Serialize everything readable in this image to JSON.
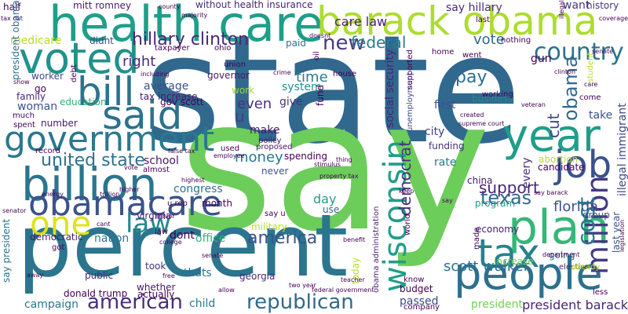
{
  "words": [
    {
      "text": "state",
      "color": "#31688e"
    },
    {
      "text": "say",
      "color": "#6ccd5a"
    },
    {
      "text": "percent",
      "color": "#2b758e"
    },
    {
      "text": "health care",
      "color": "#1f9e89"
    },
    {
      "text": "barack obama",
      "color": "#addc30"
    },
    {
      "text": "voted",
      "color": "#21918c"
    },
    {
      "text": "bill",
      "color": "#2c728e"
    },
    {
      "text": "said",
      "color": "#2c728e"
    },
    {
      "text": "government",
      "color": "#2a788e"
    },
    {
      "text": "billion",
      "color": "#2b758e"
    },
    {
      "text": "obamacare",
      "color": "#3b528b"
    },
    {
      "text": "one",
      "color": "#dde318"
    },
    {
      "text": "law",
      "color": "#238a8d"
    },
    {
      "text": "people",
      "color": "#2d708e"
    },
    {
      "text": "year",
      "color": "#1f9e89"
    },
    {
      "text": "job",
      "color": "#3b528b"
    },
    {
      "text": "plan",
      "color": "#35b779"
    },
    {
      "text": "million",
      "color": "#443a83"
    },
    {
      "text": "tax",
      "color": "#26828e"
    },
    {
      "text": "country",
      "color": "#2c728e"
    },
    {
      "text": "obama",
      "color": "#31688e"
    },
    {
      "text": "wisconsin",
      "color": "#1f9e89"
    },
    {
      "text": "cost",
      "color": "#2a788e"
    },
    {
      "text": "american",
      "color": "#472d7b"
    },
    {
      "text": "republican",
      "color": "#31688e"
    },
    {
      "text": "texas",
      "color": "#31688e"
    },
    {
      "text": "hillary clinton",
      "color": "#482878"
    },
    {
      "text": "new",
      "color": "#443a83"
    },
    {
      "text": "federal",
      "color": "#277f8e"
    },
    {
      "text": "right",
      "color": "#472c7a"
    },
    {
      "text": "care law",
      "color": "#481f70"
    },
    {
      "text": "pay",
      "color": "#2c718e"
    },
    {
      "text": "united state",
      "color": "#2d708e"
    },
    {
      "text": "vote",
      "color": "#31688e"
    },
    {
      "text": "cut",
      "color": "#3e4989"
    },
    {
      "text": "u",
      "color": "#433e85"
    },
    {
      "text": "even",
      "color": "#46337e"
    },
    {
      "text": "time",
      "color": "#277f8e"
    },
    {
      "text": "money",
      "color": "#2a788e"
    },
    {
      "text": "democrat",
      "color": "#46327e"
    },
    {
      "text": "support",
      "color": "#482677"
    },
    {
      "text": "florida",
      "color": "#3b528b"
    },
    {
      "text": "america",
      "color": "#3b528b"
    },
    {
      "text": "scott walker",
      "color": "#2d708e"
    },
    {
      "text": "president barack",
      "color": "#482475"
    },
    {
      "text": "say hillary",
      "color": "#472d7b"
    },
    {
      "text": "want",
      "color": "#453781"
    },
    {
      "text": "history",
      "color": "#46337e"
    },
    {
      "text": "without",
      "color": "#472d7b"
    },
    {
      "text": "health insurance",
      "color": "#482071"
    },
    {
      "text": "mitt romney",
      "color": "#481a6c"
    },
    {
      "text": "medicare",
      "color": "#b8de29"
    },
    {
      "text": "didnt",
      "color": "#3e4989"
    },
    {
      "text": "taxpayer",
      "color": "#440154"
    },
    {
      "text": "ohio",
      "color": "#440154"
    },
    {
      "text": "paid",
      "color": "#2c728e"
    },
    {
      "text": "worker",
      "color": "#3e4a89"
    },
    {
      "text": "family",
      "color": "#482878"
    },
    {
      "text": "woman",
      "color": "#3b528b"
    },
    {
      "text": "education",
      "color": "#2fb47c"
    },
    {
      "text": "average",
      "color": "#3b528b"
    },
    {
      "text": "tax increase",
      "color": "#48186a"
    },
    {
      "text": "gov scott",
      "color": "#440154"
    },
    {
      "text": "governor",
      "color": "#481a6c"
    },
    {
      "text": "work",
      "color": "#a0da39"
    },
    {
      "text": "system",
      "color": "#21918c"
    },
    {
      "text": "give",
      "color": "#46337e"
    },
    {
      "text": "number",
      "color": "#481769"
    },
    {
      "text": "make",
      "color": "#481769"
    },
    {
      "text": "policy",
      "color": "#481769"
    },
    {
      "text": "proposed",
      "color": "#481769"
    },
    {
      "text": "spending",
      "color": "#440154"
    },
    {
      "text": "never",
      "color": "#3b528b"
    },
    {
      "text": "social security",
      "color": "#482576"
    },
    {
      "text": "first",
      "color": "#3b528b"
    },
    {
      "text": "city",
      "color": "#433e85"
    },
    {
      "text": "funding",
      "color": "#46327e"
    },
    {
      "text": "rate",
      "color": "#2a788e"
    },
    {
      "text": "china",
      "color": "#481a6c"
    },
    {
      "text": "program",
      "color": "#1f9e89"
    },
    {
      "text": "economy",
      "color": "#482071"
    },
    {
      "text": "abortion",
      "color": "#b5de2b"
    },
    {
      "text": "candidate",
      "color": "#440154"
    },
    {
      "text": "business",
      "color": "#238a8d"
    },
    {
      "text": "take",
      "color": "#3b528b"
    },
    {
      "text": "school",
      "color": "#481769"
    },
    {
      "text": "congress",
      "color": "#2d708e"
    },
    {
      "text": "month",
      "color": "#440154"
    },
    {
      "text": "dont",
      "color": "#440154"
    },
    {
      "text": "office",
      "color": "#2fb47c"
    },
    {
      "text": "military",
      "color": "#b8de29"
    },
    {
      "text": "day",
      "color": "#1f9e89"
    },
    {
      "text": "use",
      "color": "#31688e"
    },
    {
      "text": "say u",
      "color": "#440154"
    },
    {
      "text": "nation",
      "color": "#2a788e"
    },
    {
      "text": "democratic",
      "color": "#481a6c"
    },
    {
      "text": "virginia",
      "color": "#482878"
    },
    {
      "text": "thats",
      "color": "#2c728e"
    },
    {
      "text": "georgia",
      "color": "#482878"
    },
    {
      "text": "public",
      "color": "#482878"
    },
    {
      "text": "took",
      "color": "#46327e"
    },
    {
      "text": "whether",
      "color": "#481a6c"
    },
    {
      "text": "actually",
      "color": "#440154"
    },
    {
      "text": "donald trump",
      "color": "#440154"
    },
    {
      "text": "child",
      "color": "#2a788e"
    },
    {
      "text": "campaign",
      "color": "#2a788e"
    },
    {
      "text": "budget",
      "color": "#440154"
    },
    {
      "text": "passed",
      "color": "#3e4989"
    },
    {
      "text": "president",
      "color": "#75d054"
    },
    {
      "text": "know",
      "color": "#440154"
    },
    {
      "text": "company",
      "color": "#440154"
    },
    {
      "text": "election",
      "color": "#482071"
    },
    {
      "text": "increase",
      "color": "#75d054"
    },
    {
      "text": "going",
      "color": "#2d708e"
    },
    {
      "text": "group",
      "color": "#3e4989"
    },
    {
      "text": "less",
      "color": "#440154"
    },
    {
      "text": "last year",
      "color": "#3b528b"
    },
    {
      "text": "say president",
      "color": "#2d708e"
    },
    {
      "text": "today",
      "color": "#b5de2b"
    },
    {
      "text": "obama administration",
      "color": "#482878"
    },
    {
      "text": "unemployment",
      "color": "#3e4989"
    },
    {
      "text": "every",
      "color": "#472d7b"
    },
    {
      "text": "made",
      "color": "#440154"
    },
    {
      "text": "gun",
      "color": "#440154"
    },
    {
      "text": "student",
      "color": "#b5de2b"
    },
    {
      "text": "illegal immigrant",
      "color": "#3e4989"
    },
    {
      "text": "house",
      "color": "#440154"
    },
    {
      "text": "working",
      "color": "#440154"
    },
    {
      "text": "come",
      "color": "#440154"
    },
    {
      "text": "went",
      "color": "#440154"
    },
    {
      "text": "nothing",
      "color": "#440154"
    },
    {
      "text": "home",
      "color": "#440154"
    },
    {
      "text": "go",
      "color": "#440154"
    },
    {
      "text": "got",
      "color": "#440154"
    },
    {
      "text": "fund",
      "color": "#440154"
    },
    {
      "text": "law",
      "color": "#440154"
    },
    {
      "text": "much",
      "color": "#440154"
    },
    {
      "text": "half",
      "color": "#440154"
    },
    {
      "text": "last",
      "color": "#440154"
    },
    {
      "text": "world",
      "color": "#440154"
    },
    {
      "text": "record",
      "color": "#440154"
    },
    {
      "text": "spent",
      "color": "#440154"
    },
    {
      "text": "president obama",
      "color": "#2d708e"
    },
    {
      "text": "supported",
      "color": "#440154"
    },
    {
      "text": "already",
      "color": "#b5de2b"
    },
    {
      "text": "almost",
      "color": "#440154"
    },
    {
      "text": "used",
      "color": "#440154"
    },
    {
      "text": "u rep",
      "color": "#440154"
    },
    {
      "text": "union",
      "color": "#440154"
    },
    {
      "text": "oil",
      "color": "#440154"
    },
    {
      "text": "debt",
      "color": "#440154"
    },
    {
      "text": "including",
      "color": "#440154"
    },
    {
      "text": "coverage",
      "color": "#440154"
    },
    {
      "text": "illegal",
      "color": "#440154"
    },
    {
      "text": "say barack",
      "color": "#440154"
    },
    {
      "text": "legislation",
      "color": "#440154"
    },
    {
      "text": "tax cut",
      "color": "#440154"
    },
    {
      "text": "crime",
      "color": "#440154"
    },
    {
      "text": "majority",
      "color": "#440154"
    },
    {
      "text": "county",
      "color": "#440154"
    },
    {
      "text": "doesnt",
      "color": "#440154"
    },
    {
      "text": "veteran",
      "color": "#440154"
    },
    {
      "text": "clinton",
      "color": "#440154"
    },
    {
      "text": "senate",
      "color": "#440154"
    },
    {
      "text": "stimulus",
      "color": "#440154"
    },
    {
      "text": "thing",
      "color": "#440154"
    },
    {
      "text": "higher",
      "color": "#440154"
    },
    {
      "text": "trillion",
      "color": "#440154"
    },
    {
      "text": "federal government",
      "color": "#440154"
    },
    {
      "text": "two year",
      "color": "#440154"
    },
    {
      "text": "teacher",
      "color": "#440154"
    },
    {
      "text": "department",
      "color": "#440154"
    },
    {
      "text": "allow",
      "color": "#440154"
    },
    {
      "text": "free",
      "color": "#440154"
    },
    {
      "text": "college",
      "color": "#440154"
    },
    {
      "text": "senior",
      "color": "#440154"
    },
    {
      "text": "benefit",
      "color": "#440154"
    },
    {
      "text": "property tax",
      "color": "#440154"
    },
    {
      "text": "supreme court",
      "color": "#440154"
    },
    {
      "text": "keep",
      "color": "#440154"
    },
    {
      "text": "false tax",
      "color": "#440154"
    },
    {
      "text": "employee",
      "color": "#440154"
    },
    {
      "text": "show",
      "color": "#440154"
    },
    {
      "text": "cant",
      "color": "#440154"
    },
    {
      "text": "vote",
      "color": "#440154"
    },
    {
      "text": "senator",
      "color": "#440154"
    },
    {
      "text": "energy",
      "color": "#440154"
    },
    {
      "text": "highest",
      "color": "#440154"
    },
    {
      "text": "away",
      "color": "#440154"
    },
    {
      "text": "senate",
      "color": "#440154"
    },
    {
      "text": "say",
      "color": "#440154"
    },
    {
      "text": "care",
      "color": "#440154"
    },
    {
      "text": "created",
      "color": "#440154"
    }
  ]
}
